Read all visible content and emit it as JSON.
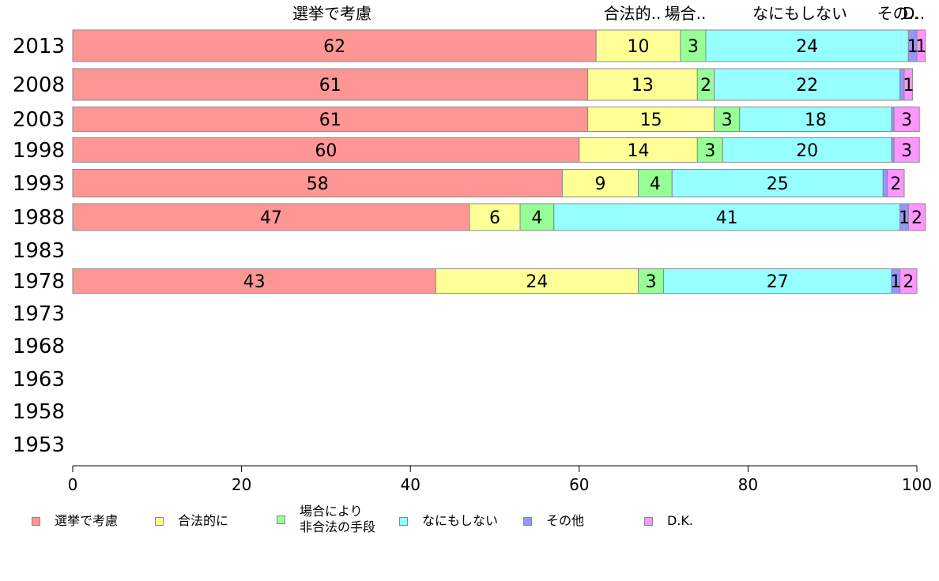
{
  "chart_data": {
    "type": "bar",
    "orientation": "horizontal",
    "stacked": true,
    "title": "",
    "xlabel": "",
    "ylabel": "",
    "xlim": [
      0,
      100
    ],
    "x_ticks": [
      "0",
      "20",
      "40",
      "60",
      "80",
      "100"
    ],
    "categories": [
      "2013",
      "2008",
      "2003",
      "1998",
      "1993",
      "1988",
      "1983",
      "1978",
      "1973",
      "1968",
      "1963",
      "1958",
      "1953"
    ],
    "top_labels": [
      "選挙で考慮",
      "合法的..",
      "場合..",
      "なにもしない",
      "その..",
      "D.."
    ],
    "series": [
      {
        "name": "選挙で考慮",
        "color": "#ff9696",
        "values": [
          62,
          61,
          61,
          60,
          58,
          47,
          null,
          43,
          null,
          null,
          null,
          null,
          null
        ]
      },
      {
        "name": "合法的に",
        "color": "#ffff96",
        "values": [
          10,
          13,
          15,
          14,
          9,
          6,
          null,
          24,
          null,
          null,
          null,
          null,
          null
        ]
      },
      {
        "name": "場合により\n非合法の手段",
        "color": "#96ff96",
        "values": [
          3,
          2,
          3,
          3,
          4,
          4,
          null,
          3,
          null,
          null,
          null,
          null,
          null
        ]
      },
      {
        "name": "なにもしない",
        "color": "#96ffff",
        "values": [
          24,
          22,
          18,
          20,
          25,
          41,
          null,
          27,
          null,
          null,
          null,
          null,
          null
        ]
      },
      {
        "name": "その他",
        "color": "#9696ff",
        "values": [
          1,
          0.5,
          0.3,
          0.3,
          0.5,
          1,
          null,
          1,
          null,
          null,
          null,
          null,
          null
        ]
      },
      {
        "name": "D.K.",
        "color": "#ff96ff",
        "values": [
          1,
          1,
          3,
          3,
          2,
          2,
          null,
          2,
          null,
          null,
          null,
          null,
          null
        ]
      }
    ],
    "data_labels": [
      [
        "62",
        "10",
        "3",
        "24",
        "1",
        "1"
      ],
      [
        "61",
        "13",
        "2",
        "22",
        "",
        "1"
      ],
      [
        "61",
        "15",
        "3",
        "18",
        "",
        "3"
      ],
      [
        "60",
        "14",
        "3",
        "20",
        "",
        "3"
      ],
      [
        "58",
        "9",
        "4",
        "25",
        "",
        "2"
      ],
      [
        "47",
        "6",
        "4",
        "41",
        "1",
        "2"
      ],
      null,
      [
        "43",
        "24",
        "3",
        "27",
        "1",
        "2"
      ],
      null,
      null,
      null,
      null,
      null
    ],
    "legend_position": "bottom",
    "grid": false
  }
}
